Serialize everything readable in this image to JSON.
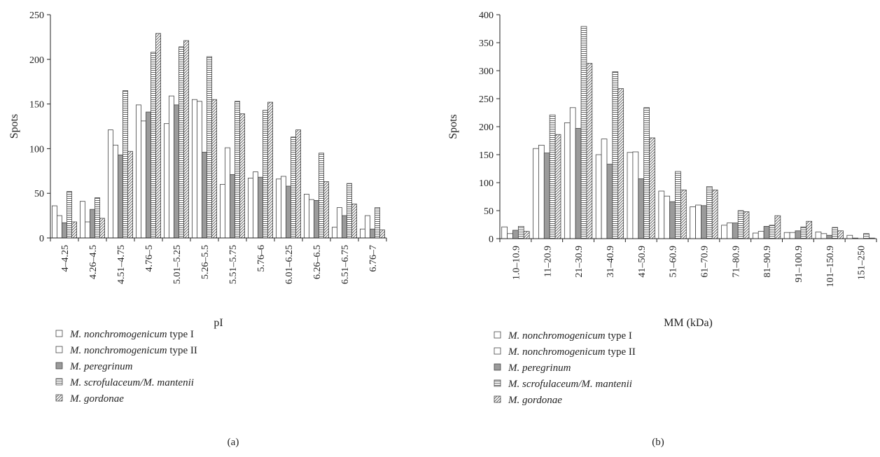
{
  "chart_data": [
    {
      "type": "bar",
      "panel_label": "(a)",
      "xlabel": "pI",
      "ylabel": "Spots",
      "ylim": [
        0,
        250
      ],
      "yticks": [
        "0",
        "50",
        "100",
        "150",
        "200",
        "250"
      ],
      "grid": false,
      "categories": [
        "4–4.25",
        "4.26–4.5",
        "4.51–4.75",
        "4.76–5",
        "5.01–5.25",
        "5.26–5.5",
        "5.51–5.75",
        "5.76–6",
        "6.01–6.25",
        "6.26–6.5",
        "6.51–6.75",
        "6.76–7"
      ],
      "series": [
        {
          "name_italic": "M. nonchromogenicum",
          "name_rest": " type I",
          "pattern": "white",
          "values": [
            36,
            41,
            121,
            149,
            128,
            155,
            60,
            67,
            66,
            49,
            12,
            10
          ]
        },
        {
          "name_italic": "M. nonchromogenicum",
          "name_rest": " type II",
          "pattern": "white",
          "values": [
            25,
            18,
            104,
            131,
            159,
            153,
            101,
            74,
            69,
            43,
            34,
            25
          ]
        },
        {
          "name_italic": "M. peregrinum",
          "name_rest": "",
          "pattern": "gray",
          "values": [
            17,
            32,
            93,
            141,
            149,
            96,
            71,
            68,
            58,
            42,
            25,
            10
          ]
        },
        {
          "name_italic": "M. scrofulaceum/M. mantenii",
          "name_rest": "",
          "pattern": "hstripe",
          "values": [
            52,
            45,
            165,
            208,
            214,
            203,
            153,
            143,
            113,
            95,
            61,
            34
          ]
        },
        {
          "name_italic": "M. gordonae",
          "name_rest": "",
          "pattern": "diag",
          "values": [
            18,
            22,
            97,
            229,
            221,
            155,
            139,
            152,
            121,
            63,
            38,
            9
          ]
        }
      ]
    },
    {
      "type": "bar",
      "panel_label": "(b)",
      "xlabel": "MM (kDa)",
      "ylabel": "Spots",
      "ylim": [
        0,
        400
      ],
      "yticks": [
        "0",
        "50",
        "100",
        "150",
        "200",
        "250",
        "300",
        "350",
        "400"
      ],
      "grid": false,
      "categories": [
        "1.0–10.9",
        "11–20.9",
        "21–30.9",
        "31–40.9",
        "41–50.9",
        "51–60.9",
        "61–70.9",
        "71–80.9",
        "81–90.9",
        "91–100.9",
        "101–150.9",
        "151–250"
      ],
      "series": [
        {
          "name_italic": "M. nonchromogenicum",
          "name_rest": " type I",
          "pattern": "white",
          "values": [
            21,
            161,
            207,
            150,
            154,
            85,
            57,
            24,
            10,
            11,
            12,
            6
          ]
        },
        {
          "name_italic": "M. nonchromogenicum",
          "name_rest": " type II",
          "pattern": "white",
          "values": [
            9,
            167,
            234,
            178,
            155,
            76,
            60,
            28,
            13,
            11,
            9,
            1
          ]
        },
        {
          "name_italic": "M. peregrinum",
          "name_rest": "",
          "pattern": "gray",
          "values": [
            15,
            153,
            197,
            133,
            107,
            66,
            59,
            28,
            22,
            14,
            6,
            0
          ]
        },
        {
          "name_italic": "M. scrofulaceum/M. mantenii",
          "name_rest": "",
          "pattern": "hstripe",
          "values": [
            22,
            221,
            379,
            298,
            234,
            120,
            93,
            50,
            24,
            21,
            20,
            9
          ]
        },
        {
          "name_italic": "M. gordonae",
          "name_rest": "",
          "pattern": "diag",
          "values": [
            13,
            186,
            313,
            268,
            180,
            87,
            87,
            48,
            41,
            31,
            14,
            1
          ]
        }
      ]
    }
  ]
}
